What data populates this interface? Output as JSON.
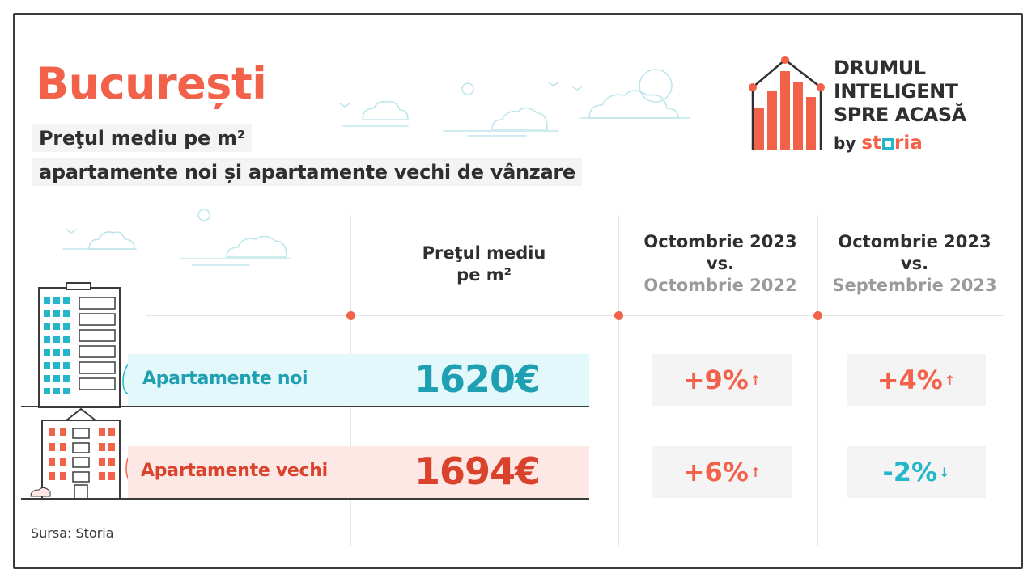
{
  "title": "București",
  "subtitle_line1": "Preţul mediu pe m²",
  "subtitle_line2": "apartamente noi și apartamente vechi de vânzare",
  "logo": {
    "lines": [
      "DRUMUL",
      "INTELIGENT",
      "SPRE ACASĂ"
    ],
    "by": "by",
    "brand_pre": "st",
    "brand_post": "ria"
  },
  "columns": {
    "price_head_line1": "Preţul mediu",
    "price_head_line2": "pe m²",
    "yoy_line1": "Octombrie 2023",
    "yoy_line2": "vs.",
    "yoy_line3": "Octombrie 2022",
    "mom_line1": "Octombrie 2023",
    "mom_line2": "vs.",
    "mom_line3": "Septembrie 2023"
  },
  "rows": [
    {
      "label": "Apartamente noi",
      "price": "1620€",
      "yoy": "+9%",
      "yoy_dir": "up",
      "mom": "+4%",
      "mom_dir": "up"
    },
    {
      "label": "Apartamente vechi",
      "price": "1694€",
      "yoy": "+6%",
      "yoy_dir": "up",
      "mom": "-2%",
      "mom_dir": "down"
    }
  ],
  "arrows": {
    "up": "↑",
    "down": "↓"
  },
  "source": "Sursa: Storia",
  "colors": {
    "accent_red": "#f2614a",
    "accent_teal": "#25b6c9",
    "new_band": "#e2f8fb",
    "old_band": "#fde8e5",
    "new_price": "#1f9fb2",
    "old_price": "#d9432c"
  }
}
